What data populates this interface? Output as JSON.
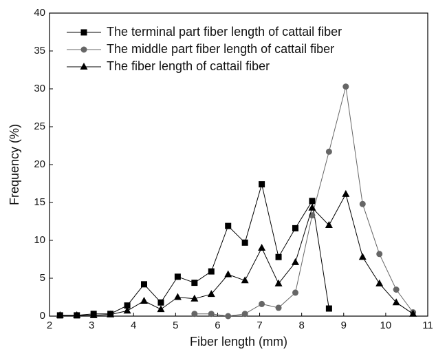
{
  "chart_data": {
    "type": "line",
    "xlabel": "Fiber length (mm)",
    "ylabel": "Frequency (%)",
    "x": [
      2.25,
      2.65,
      3.05,
      3.45,
      3.85,
      4.25,
      4.65,
      5.05,
      5.45,
      5.85,
      6.25,
      6.65,
      7.05,
      7.45,
      7.85,
      8.25,
      8.65,
      9.05,
      9.45,
      9.85,
      10.25,
      10.65
    ],
    "series": [
      {
        "name": "The terminal part fiber length of cattail fiber",
        "color": "#000000",
        "marker": "square",
        "values": [
          0.1,
          0.1,
          0.3,
          0.3,
          1.4,
          4.2,
          1.8,
          5.2,
          4.4,
          5.9,
          11.9,
          9.7,
          17.4,
          7.8,
          11.6,
          15.2,
          1.0,
          null,
          null,
          null,
          null,
          null
        ]
      },
      {
        "name": "The middle part fiber length of cattail fiber",
        "color": "#666666",
        "marker": "circle",
        "values": [
          null,
          null,
          null,
          null,
          null,
          null,
          null,
          null,
          0.3,
          0.3,
          0,
          0.3,
          1.6,
          1.1,
          3.1,
          13.3,
          21.7,
          30.3,
          14.8,
          8.2,
          3.5,
          0.5
        ]
      },
      {
        "name": "The fiber length of cattail fiber",
        "color": "#000000",
        "marker": "triangle",
        "values": [
          0.1,
          0.1,
          0.1,
          0.2,
          0.7,
          2.0,
          0.9,
          2.5,
          2.3,
          2.9,
          5.5,
          4.7,
          9.0,
          4.3,
          7.1,
          14.3,
          12.0,
          16.1,
          7.8,
          4.3,
          1.8,
          0.3
        ]
      }
    ],
    "xlim": [
      2,
      11
    ],
    "xticks": [
      2,
      3,
      4,
      5,
      6,
      7,
      8,
      9,
      10,
      11
    ],
    "ylim": [
      0,
      40
    ],
    "yticks": [
      0,
      5,
      10,
      15,
      20,
      25,
      30,
      35,
      40
    ],
    "legend": "upper left",
    "grid": false
  }
}
